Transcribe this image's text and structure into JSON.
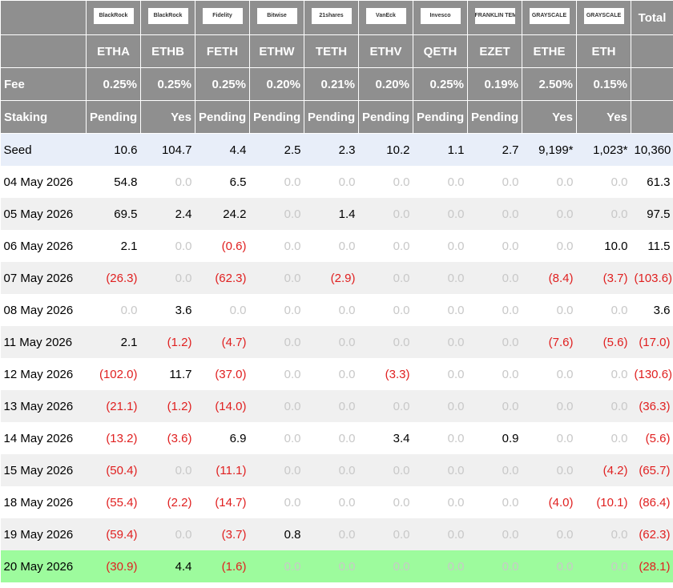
{
  "header": {
    "logos": [
      "BlackRock",
      "BlackRock",
      "Fidelity",
      "Bitwise",
      "21shares",
      "VanEck",
      "Invesco",
      "FRANKLIN TEMPLETON",
      "GRAYSCALE",
      "GRAYSCALE"
    ],
    "total": "Total"
  },
  "tickers": [
    "ETHA",
    "ETHB",
    "FETH",
    "ETHW",
    "TETH",
    "ETHV",
    "QETH",
    "EZET",
    "ETHE",
    "ETH"
  ],
  "fee": {
    "label": "Fee",
    "values": [
      "0.25%",
      "0.25%",
      "0.25%",
      "0.20%",
      "0.21%",
      "0.20%",
      "0.25%",
      "0.19%",
      "2.50%",
      "0.15%"
    ]
  },
  "staking": {
    "label": "Staking",
    "values": [
      "Pending",
      "Yes",
      "Pending",
      "Pending",
      "Pending",
      "Pending",
      "Pending",
      "Pending",
      "Yes",
      "Yes"
    ]
  },
  "rows": [
    {
      "label": "Seed",
      "values": [
        "10.6",
        "104.7",
        "4.4",
        "2.5",
        "2.3",
        "10.2",
        "1.1",
        "2.7",
        "9,199*",
        "1,023*",
        "10,360"
      ]
    },
    {
      "label": "04 May 2026",
      "values": [
        "54.8",
        "0.0",
        "6.5",
        "0.0",
        "0.0",
        "0.0",
        "0.0",
        "0.0",
        "0.0",
        "0.0",
        "61.3"
      ]
    },
    {
      "label": "05 May 2026",
      "values": [
        "69.5",
        "2.4",
        "24.2",
        "0.0",
        "1.4",
        "0.0",
        "0.0",
        "0.0",
        "0.0",
        "0.0",
        "97.5"
      ]
    },
    {
      "label": "06 May 2026",
      "values": [
        "2.1",
        "0.0",
        "(0.6)",
        "0.0",
        "0.0",
        "0.0",
        "0.0",
        "0.0",
        "0.0",
        "10.0",
        "11.5"
      ]
    },
    {
      "label": "07 May 2026",
      "values": [
        "(26.3)",
        "0.0",
        "(62.3)",
        "0.0",
        "(2.9)",
        "0.0",
        "0.0",
        "0.0",
        "(8.4)",
        "(3.7)",
        "(103.6)"
      ]
    },
    {
      "label": "08 May 2026",
      "values": [
        "0.0",
        "3.6",
        "0.0",
        "0.0",
        "0.0",
        "0.0",
        "0.0",
        "0.0",
        "0.0",
        "0.0",
        "3.6"
      ]
    },
    {
      "label": "11 May 2026",
      "values": [
        "2.1",
        "(1.2)",
        "(4.7)",
        "0.0",
        "0.0",
        "0.0",
        "0.0",
        "0.0",
        "(7.6)",
        "(5.6)",
        "(17.0)"
      ]
    },
    {
      "label": "12 May 2026",
      "values": [
        "(102.0)",
        "11.7",
        "(37.0)",
        "0.0",
        "0.0",
        "(3.3)",
        "0.0",
        "0.0",
        "0.0",
        "0.0",
        "(130.6)"
      ]
    },
    {
      "label": "13 May 2026",
      "values": [
        "(21.1)",
        "(1.2)",
        "(14.0)",
        "0.0",
        "0.0",
        "0.0",
        "0.0",
        "0.0",
        "0.0",
        "0.0",
        "(36.3)"
      ]
    },
    {
      "label": "14 May 2026",
      "values": [
        "(13.2)",
        "(3.6)",
        "6.9",
        "0.0",
        "0.0",
        "3.4",
        "0.0",
        "0.9",
        "0.0",
        "0.0",
        "(5.6)"
      ]
    },
    {
      "label": "15 May 2026",
      "values": [
        "(50.4)",
        "0.0",
        "(11.1)",
        "0.0",
        "0.0",
        "0.0",
        "0.0",
        "0.0",
        "0.0",
        "(4.2)",
        "(65.7)"
      ]
    },
    {
      "label": "18 May 2026",
      "values": [
        "(55.4)",
        "(2.2)",
        "(14.7)",
        "0.0",
        "0.0",
        "0.0",
        "0.0",
        "0.0",
        "(4.0)",
        "(10.1)",
        "(86.4)"
      ]
    },
    {
      "label": "19 May 2026",
      "values": [
        "(59.4)",
        "0.0",
        "(3.7)",
        "0.8",
        "0.0",
        "0.0",
        "0.0",
        "0.0",
        "0.0",
        "0.0",
        "(62.3)"
      ]
    },
    {
      "label": "20 May 2026",
      "values": [
        "(30.9)",
        "4.4",
        "(1.6)",
        "0.0",
        "0.0",
        "0.0",
        "0.0",
        "0.0",
        "0.0",
        "0.0",
        "(28.1)"
      ]
    }
  ]
}
